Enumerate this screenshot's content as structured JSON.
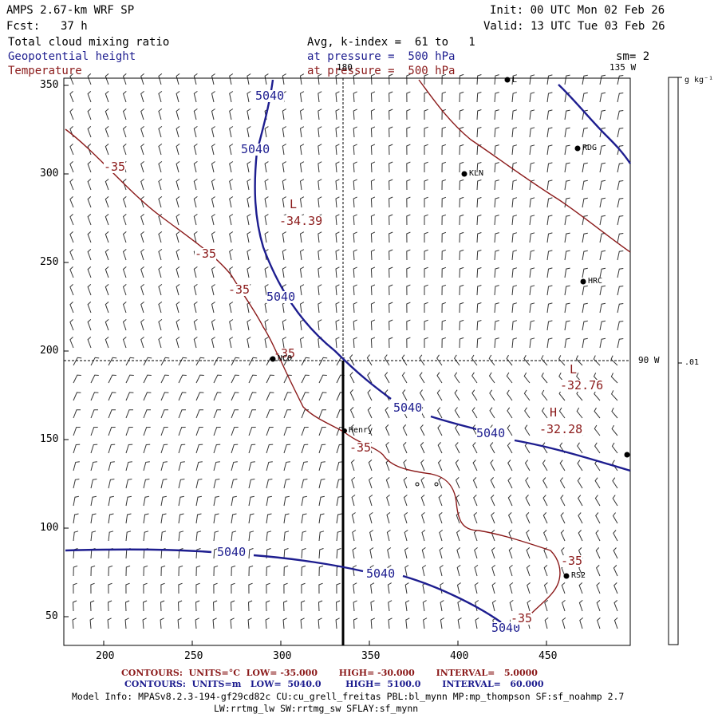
{
  "header": {
    "model": "AMPS 2.67-km WRF SP",
    "forecast_label": "Fcst:",
    "forecast_hours": "37 h",
    "init": "Init: 00 UTC Mon 02 Feb 26",
    "valid": "Valid: 13 UTC Tue 03 Feb 26",
    "field1": "Total cloud mixing ratio",
    "field1_desc": "Avg, k-index =  61 to   1",
    "field2": "Geopotential height",
    "field2_desc": "at pressure =  500 hPa",
    "field3": "Temperature",
    "field3_desc": "at pressure =  500 hPa",
    "smoothing": "sm= 2"
  },
  "axes": {
    "x_ticks": [
      "200",
      "250",
      "300",
      "350",
      "400",
      "450"
    ],
    "y_ticks": [
      "350",
      "300",
      "250",
      "200",
      "150",
      "100",
      "50"
    ]
  },
  "meridians": {
    "lon180": "180",
    "lon135": "135 W",
    "lon90": "90 W"
  },
  "colorbar": {
    "unit": "g kg⁻¹",
    "tick": ".01"
  },
  "height_labels": [
    "5040",
    "5040",
    "5040",
    "5040",
    "5040",
    "5040",
    "5040",
    "5040"
  ],
  "temp_labels": [
    "-35",
    "-35",
    "-35",
    "-35",
    "-35",
    "-35",
    "-35"
  ],
  "centers": [
    {
      "letter": "L",
      "value": "-34.39"
    },
    {
      "letter": "L",
      "value": "-32.76"
    },
    {
      "letter": "H",
      "value": "-32.28"
    }
  ],
  "stations": [
    {
      "name": "RDG"
    },
    {
      "name": "KLN"
    },
    {
      "name": "HRC"
    },
    {
      "name": "NCO"
    },
    {
      "name": "Henry"
    },
    {
      "name": "RS2"
    },
    {
      "name": "L"
    }
  ],
  "footer": {
    "temp_contours": "CONTOURS:  UNITS=°C  LOW= -35.000       HIGH= -30.000       INTERVAL=   5.0000",
    "height_contours": "CONTOURS:  UNITS=m   LOW=  5040.0        HIGH=  5100.0       INTERVAL=   60.000",
    "model_info": "Model Info: MPASv8.2.3-194-gf29cd82c CU:cu_grell_freitas PBL:bl_mynn MP:mp_thompson SF:sf_noahmp 2.7",
    "model_info2": "LW:rrtmg_lw SW:rrtmg_sw SFLAY:sf_mynn"
  },
  "colors": {
    "height": "#1d1d8f",
    "temperature": "#8b1a1a"
  }
}
